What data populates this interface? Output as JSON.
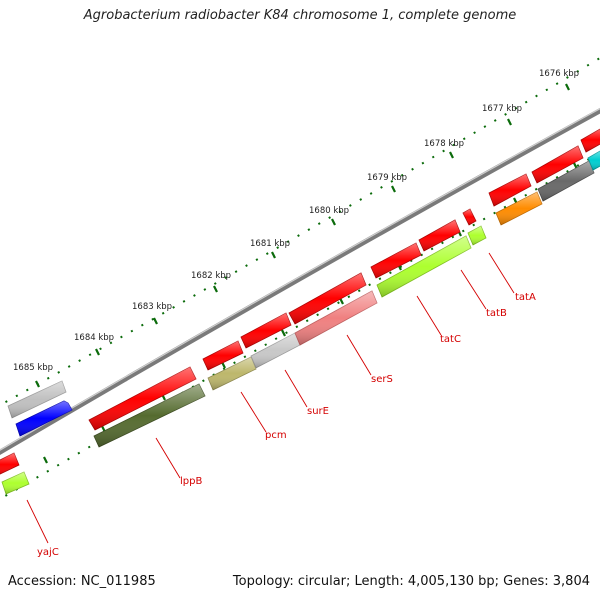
{
  "title": "Agrobacterium radiobacter K84 chromosome 1, complete genome",
  "scale_labels": [
    "1676 kbp",
    "1677 kbp",
    "1678 kbp",
    "1679 kbp",
    "1680 kbp",
    "1681 kbp",
    "1682 kbp",
    "1683 kbp",
    "1684 kbp",
    "1685 kbp"
  ],
  "genes": [
    {
      "name": "yajC",
      "color": "#adff2f"
    },
    {
      "name": "lppB",
      "color": "#556b2f"
    },
    {
      "name": "pcm",
      "color": "#bdb76b"
    },
    {
      "name": "surE",
      "color": "#c0c0c0"
    },
    {
      "name": "serS",
      "color": "#f08080"
    },
    {
      "name": "tatC",
      "color": "#adff2f"
    },
    {
      "name": "tatB",
      "color": "#adff2f"
    },
    {
      "name": "tatA",
      "color": "#ff8c00"
    }
  ],
  "colors": {
    "cds": "#ff0000",
    "backbone": "#808080",
    "tick": "#006400",
    "label": "#d40000",
    "blue_feature": "#0000ff",
    "grey_feature": "#c0c0c0",
    "dark_feature": "#696969",
    "cyan_feature": "#00ced1"
  },
  "footer": {
    "accession": "Accession: NC_011985",
    "summary": "Topology: circular; Length: 4,005,130 bp; Genes: 3,804"
  }
}
